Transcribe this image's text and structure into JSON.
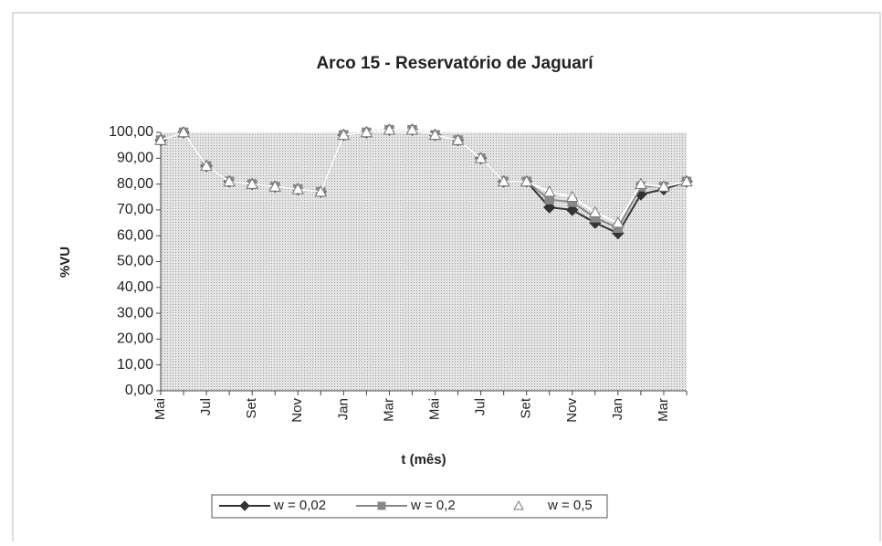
{
  "chart_data": {
    "type": "line",
    "title": "Arco 15 - Reservatório de Jaguarí",
    "y_label": "%VU",
    "x_label": "t (mês)",
    "categories": [
      "Mai",
      null,
      "Jul",
      null,
      "Set",
      null,
      "Nov",
      null,
      "Jan",
      null,
      "Mar",
      null,
      "Mai",
      null,
      "Jul",
      null,
      "Set",
      null,
      "Nov",
      null,
      "Jan",
      null,
      "Mar",
      null
    ],
    "series": [
      {
        "name": "w = 0,02",
        "color": "#333333",
        "marker": "diamond",
        "values": [
          97,
          100,
          87,
          81,
          80,
          79,
          78,
          77,
          99,
          100,
          101,
          101,
          99,
          97,
          90,
          81,
          81,
          71,
          70,
          65,
          61,
          76,
          78,
          81
        ]
      },
      {
        "name": "w = 0,2",
        "color": "#888888",
        "marker": "square",
        "values": [
          97,
          100,
          87,
          81,
          80,
          79,
          78,
          77,
          99,
          100,
          101,
          101,
          99,
          97,
          90,
          81,
          81,
          74,
          73,
          67,
          63,
          79,
          79,
          81
        ]
      },
      {
        "name": "w = 0,5",
        "color": "#ffffff",
        "marker": "triangle",
        "values": [
          97,
          100,
          87,
          81,
          80,
          79,
          78,
          77,
          99,
          100,
          101,
          101,
          99,
          97,
          90,
          81,
          81,
          77,
          75,
          69,
          65,
          80,
          79,
          81
        ]
      }
    ],
    "ylim": [
      0,
      100
    ],
    "yticks": [
      {
        "value": 0,
        "label": "0,00"
      },
      {
        "value": 10,
        "label": "10,00"
      },
      {
        "value": 20,
        "label": "20,00"
      },
      {
        "value": 30,
        "label": "30,00"
      },
      {
        "value": 40,
        "label": "40,00"
      },
      {
        "value": 50,
        "label": "50,00"
      },
      {
        "value": 60,
        "label": "60,00"
      },
      {
        "value": 70,
        "label": "70,00"
      },
      {
        "value": 80,
        "label": "80,00"
      },
      {
        "value": 90,
        "label": "90,00"
      },
      {
        "value": 100,
        "label": "100,00"
      }
    ]
  }
}
